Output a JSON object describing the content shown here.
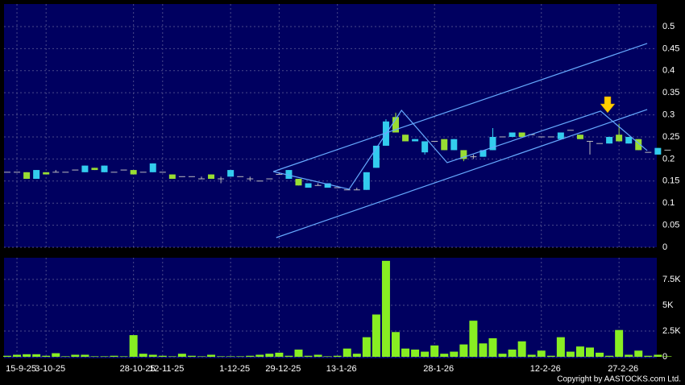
{
  "chart_data": {
    "type": "candlestick",
    "categories": [
      null,
      "15-9-25",
      null,
      null,
      "3-10-25",
      null,
      null,
      null,
      null,
      null,
      null,
      null,
      null,
      "28-10-25",
      null,
      null,
      "12-11-25",
      null,
      null,
      null,
      null,
      null,
      null,
      "1-12-25",
      null,
      null,
      null,
      null,
      "29-12-25",
      null,
      null,
      null,
      null,
      null,
      "13-1-26",
      null,
      null,
      null,
      null,
      null,
      null,
      null,
      null,
      null,
      "28-1-26",
      null,
      null,
      null,
      null,
      null,
      null,
      null,
      null,
      null,
      null,
      "12-2-26",
      null,
      null,
      null,
      null,
      null,
      null,
      null,
      "27-2-26",
      null,
      null,
      null,
      null,
      null
    ],
    "open": [
      0.17,
      0.17,
      0.17,
      0.155,
      0.17,
      0.17,
      0.17,
      0.175,
      0.17,
      0.18,
      0.17,
      0.17,
      0.175,
      0.175,
      0.17,
      0.17,
      0.17,
      0.165,
      0.16,
      0.16,
      0.155,
      0.165,
      0.155,
      0.16,
      0.16,
      0.155,
      0.15,
      0.155,
      0.165,
      0.155,
      0.155,
      0.135,
      0.14,
      0.135,
      0.135,
      0.13,
      0.13,
      0.13,
      0.18,
      0.23,
      0.295,
      0.255,
      0.24,
      0.215,
      0.24,
      0.245,
      0.22,
      0.22,
      0.205,
      0.205,
      0.22,
      0.25,
      0.25,
      0.26,
      0.255,
      0.25,
      0.25,
      0.245,
      0.265,
      0.255,
      0.24,
      0.235,
      0.235,
      0.255,
      0.235,
      0.245,
      0.215,
      0.21,
      0.22
    ],
    "high": [
      0.17,
      0.17,
      0.17,
      0.175,
      0.17,
      0.175,
      0.17,
      0.175,
      0.185,
      0.18,
      0.185,
      0.17,
      0.175,
      0.175,
      0.17,
      0.19,
      0.17,
      0.165,
      0.16,
      0.16,
      0.16,
      0.165,
      0.16,
      0.175,
      0.16,
      0.16,
      0.15,
      0.155,
      0.17,
      0.175,
      0.155,
      0.145,
      0.145,
      0.145,
      0.135,
      0.13,
      0.135,
      0.17,
      0.23,
      0.29,
      0.305,
      0.255,
      0.245,
      0.24,
      0.24,
      0.245,
      0.245,
      0.22,
      0.21,
      0.22,
      0.27,
      0.25,
      0.26,
      0.26,
      0.255,
      0.25,
      0.25,
      0.26,
      0.265,
      0.255,
      0.24,
      0.235,
      0.25,
      0.28,
      0.25,
      0.245,
      0.215,
      0.225,
      0.22
    ],
    "low": [
      0.17,
      0.17,
      0.155,
      0.155,
      0.165,
      0.17,
      0.17,
      0.175,
      0.17,
      0.175,
      0.17,
      0.17,
      0.175,
      0.165,
      0.17,
      0.17,
      0.17,
      0.155,
      0.16,
      0.16,
      0.155,
      0.155,
      0.145,
      0.16,
      0.16,
      0.15,
      0.15,
      0.155,
      0.165,
      0.155,
      0.14,
      0.135,
      0.14,
      0.135,
      0.135,
      0.13,
      0.13,
      0.13,
      0.18,
      0.23,
      0.26,
      0.24,
      0.24,
      0.21,
      0.24,
      0.22,
      0.22,
      0.195,
      0.2,
      0.205,
      0.22,
      0.25,
      0.25,
      0.25,
      0.255,
      0.25,
      0.25,
      0.245,
      0.265,
      0.245,
      0.21,
      0.235,
      0.235,
      0.24,
      0.235,
      0.22,
      0.215,
      0.21,
      0.22
    ],
    "close": [
      0.17,
      0.17,
      0.155,
      0.175,
      0.165,
      0.17,
      0.17,
      0.175,
      0.185,
      0.175,
      0.185,
      0.17,
      0.175,
      0.165,
      0.17,
      0.19,
      0.17,
      0.155,
      0.16,
      0.16,
      0.155,
      0.155,
      0.155,
      0.175,
      0.16,
      0.155,
      0.15,
      0.155,
      0.165,
      0.175,
      0.14,
      0.145,
      0.14,
      0.145,
      0.135,
      0.13,
      0.13,
      0.17,
      0.23,
      0.285,
      0.26,
      0.24,
      0.245,
      0.24,
      0.24,
      0.22,
      0.245,
      0.2,
      0.205,
      0.22,
      0.25,
      0.25,
      0.26,
      0.25,
      0.255,
      0.25,
      0.25,
      0.26,
      0.265,
      0.245,
      0.24,
      0.235,
      0.25,
      0.24,
      0.25,
      0.22,
      0.215,
      0.225,
      0.22
    ],
    "up_color": "#33ccee",
    "down_color": "#99dd33",
    "ylim": [
      0,
      0.551
    ],
    "yticks": [
      0,
      0.05,
      0.1,
      0.15,
      0.2,
      0.25,
      0.3,
      0.35,
      0.4,
      0.45,
      0.5
    ],
    "trendlines": [
      {
        "x": [
          27.4,
          65.9
        ],
        "y": [
          0.1715,
          0.4617
        ]
      },
      {
        "x": [
          27.7,
          65.9
        ],
        "y": [
          0.0219,
          0.312
        ]
      },
      {
        "x": [
          27.4,
          35.2,
          40.6,
          45.3,
          61.1,
          65.9
        ],
        "y": [
          0.1715,
          0.1314,
          0.3102,
          0.1916,
          0.3084,
          0.219
        ]
      }
    ],
    "trendline_color": "#66aaff",
    "volume": [
      100,
      200,
      250,
      250,
      100,
      350,
      50,
      200,
      200,
      50,
      50,
      100,
      50,
      2100,
      300,
      200,
      100,
      50,
      300,
      100,
      50,
      200,
      50,
      50,
      50,
      100,
      200,
      300,
      400,
      100,
      700,
      100,
      200,
      50,
      100,
      800,
      300,
      1900,
      4100,
      9300,
      2400,
      800,
      700,
      500,
      1100,
      300,
      500,
      1200,
      3500,
      1300,
      1800,
      300,
      700,
      1500,
      200,
      600,
      100,
      1900,
      500,
      1000,
      900,
      400,
      100,
      2600,
      200,
      600,
      100,
      200,
      50
    ],
    "volume_color": "#88ee22",
    "volume_ylim": [
      0,
      9600
    ],
    "volume_yticks": [
      0,
      {
        "value": 2500,
        "label": "2.5K"
      },
      {
        "value": 5000,
        "label": "5K"
      },
      {
        "value": 7500,
        "label": "7.5K"
      }
    ],
    "grid": true,
    "copyright": "Copyright by AASTOCKS.com Ltd."
  }
}
